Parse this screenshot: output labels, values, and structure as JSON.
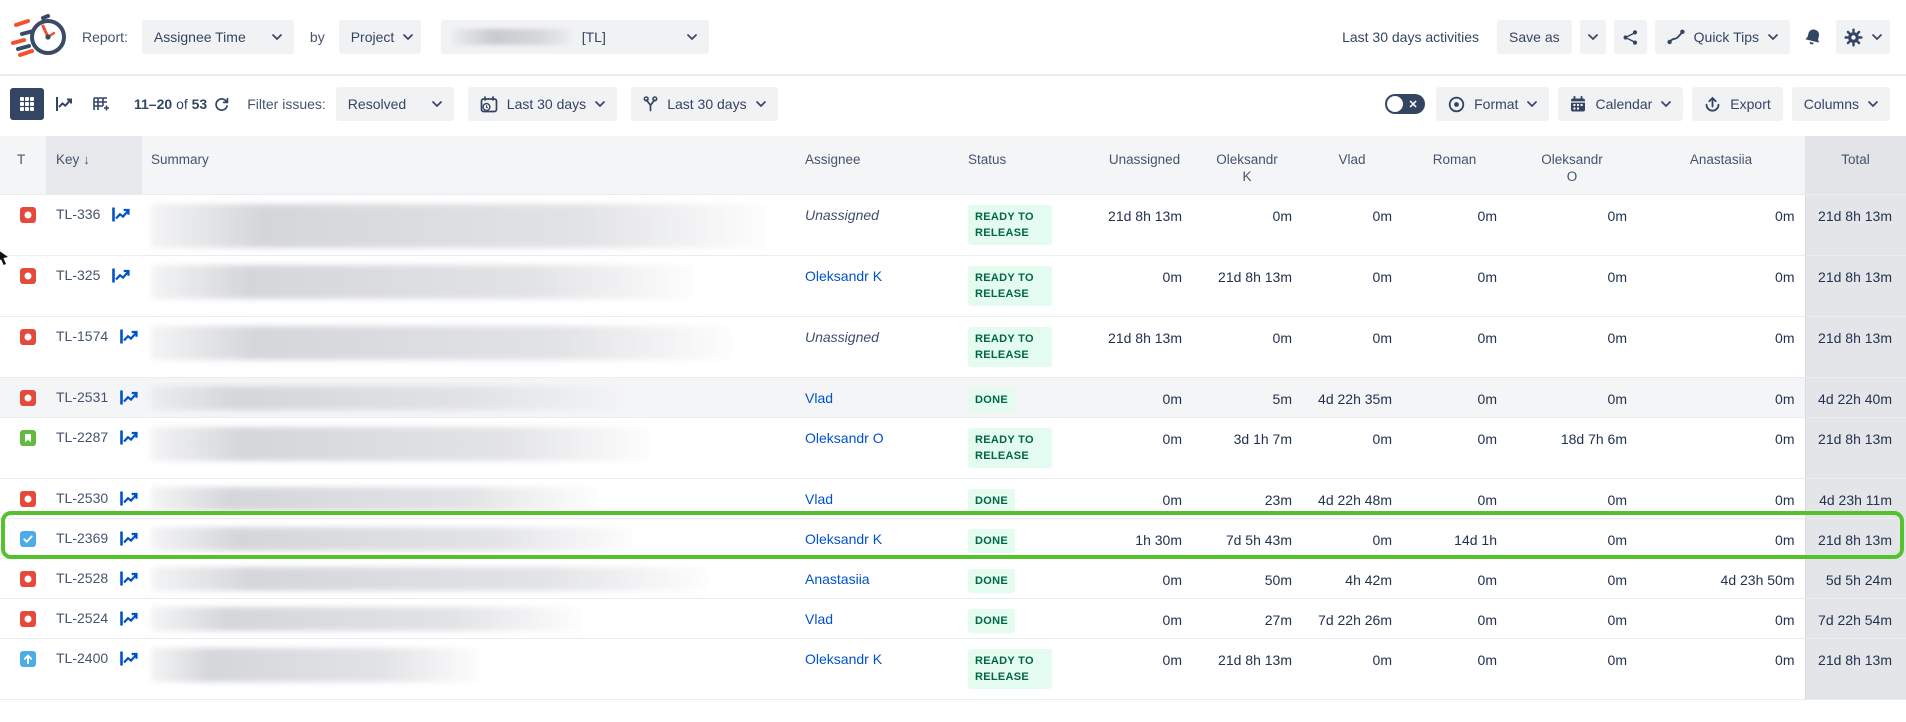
{
  "header": {
    "report_label": "Report:",
    "report_select": "Assignee Time",
    "by_label": "by",
    "group_select": "Project",
    "project_select_suffix": "[TL]",
    "activities_text": "Last 30 days activities",
    "save_as": "Save as",
    "quick_tips": "Quick Tips"
  },
  "toolbar": {
    "pagination_range": "11–20",
    "pagination_of": "of",
    "pagination_total": "53",
    "filter_label": "Filter issues:",
    "status_filter": "Resolved",
    "created_filter": "Last 30 days",
    "updated_filter": "Last 30 days",
    "format_label": "Format",
    "calendar_label": "Calendar",
    "export_label": "Export",
    "columns_label": "Columns"
  },
  "table": {
    "sort_indicator": "↓",
    "columns": [
      {
        "id": "type",
        "label": "T"
      },
      {
        "id": "key",
        "label": "Key",
        "sorted": true
      },
      {
        "id": "summary",
        "label": "Summary"
      },
      {
        "id": "assignee",
        "label": "Assignee"
      },
      {
        "id": "status",
        "label": "Status"
      },
      {
        "id": "user-unassigned",
        "label": "Unassigned",
        "num": true
      },
      {
        "id": "user-oleksandr-k",
        "label": "Oleksandr",
        "line2": "K",
        "num": true
      },
      {
        "id": "user-vlad",
        "label": "Vlad",
        "num": true
      },
      {
        "id": "user-roman",
        "label": "Roman",
        "num": true
      },
      {
        "id": "user-oleksandr-o",
        "label": "Oleksandr",
        "line2": "O",
        "num": true
      },
      {
        "id": "user-anastasiia",
        "label": "Anastasiia",
        "num": true
      },
      {
        "id": "total",
        "label": "Total",
        "num": true,
        "total": true
      }
    ],
    "rows": [
      {
        "type": "bug",
        "key": "TL-336",
        "assignee": "Unassigned",
        "unassigned": true,
        "status": "READY TO RELEASE",
        "hours": [
          "21d 8h 13m",
          "0m",
          "0m",
          "0m",
          "0m",
          "0m"
        ],
        "total": "21d 8h 13m",
        "tall": true,
        "blur_width": 616,
        "blur_height": 44
      },
      {
        "type": "bug",
        "key": "TL-325",
        "assignee": "Oleksandr K",
        "status": "READY TO RELEASE",
        "hours": [
          "0m",
          "21d 8h 13m",
          "0m",
          "0m",
          "0m",
          "0m"
        ],
        "total": "21d 8h 13m",
        "tall": true,
        "blur_width": 543
      },
      {
        "type": "bug",
        "key": "TL-1574",
        "assignee": "Unassigned",
        "unassigned": true,
        "status": "READY TO RELEASE",
        "hours": [
          "21d 8h 13m",
          "0m",
          "0m",
          "0m",
          "0m",
          "0m"
        ],
        "total": "21d 8h 13m",
        "tall": true,
        "blur_width": 580
      },
      {
        "type": "bug",
        "key": "TL-2531",
        "assignee": "Vlad",
        "status": "DONE",
        "hours": [
          "0m",
          "5m",
          "4d 22h 35m",
          "0m",
          "0m",
          "0m"
        ],
        "total": "4d 22h 40m",
        "shaded": true,
        "blur_width": 470
      },
      {
        "type": "story",
        "key": "TL-2287",
        "assignee": "Oleksandr O",
        "status": "READY TO RELEASE",
        "hours": [
          "0m",
          "3d 1h 7m",
          "0m",
          "0m",
          "18d 7h 6m",
          "0m"
        ],
        "total": "21d 8h 13m",
        "tall": true,
        "blur_width": 500
      },
      {
        "type": "bug",
        "key": "TL-2530",
        "assignee": "Vlad",
        "status": "DONE",
        "hours": [
          "0m",
          "23m",
          "4d 22h 48m",
          "0m",
          "0m",
          "0m"
        ],
        "total": "4d 23h 11m",
        "blur_width": 445
      },
      {
        "type": "task",
        "key": "TL-2369",
        "assignee": "Oleksandr K",
        "status": "DONE",
        "hours": [
          "1h 30m",
          "7d 5h 43m",
          "0m",
          "14d 1h",
          "0m",
          "0m"
        ],
        "total": "21d 8h 13m",
        "highlighted": true,
        "blur_width": 483
      },
      {
        "type": "bug",
        "key": "TL-2528",
        "assignee": "Anastasiia",
        "status": "DONE",
        "hours": [
          "0m",
          "50m",
          "4h 42m",
          "0m",
          "0m",
          "4d 23h 50m"
        ],
        "total": "5d 5h 24m",
        "blur_width": 556
      },
      {
        "type": "bug",
        "key": "TL-2524",
        "assignee": "Vlad",
        "status": "DONE",
        "hours": [
          "0m",
          "27m",
          "7d 22h 26m",
          "0m",
          "0m",
          "0m"
        ],
        "total": "7d 22h 54m",
        "blur_width": 430
      },
      {
        "type": "improvement",
        "key": "TL-2400",
        "assignee": "Oleksandr K",
        "status": "READY TO RELEASE",
        "hours": [
          "0m",
          "21d 8h 13m",
          "0m",
          "0m",
          "0m",
          "0m"
        ],
        "total": "21d 8h 13m",
        "tall": true,
        "blur_width": 330
      }
    ]
  },
  "icons": {
    "logo": "stopwatch-speed-logo",
    "type_bug": "red-square-circle",
    "type_story": "green-square-bookmark",
    "type_task": "blue-square-check",
    "type_improvement": "blue-square-arrow-up",
    "row_chart": "blue-trend-line",
    "share": "share-nodes",
    "bell": "notification-bell",
    "gear": "settings-gear",
    "refresh": "refresh-arrows",
    "calendar_clock": "calendar-with-clock",
    "worklog": "branch-y",
    "format": "target-circle",
    "calendar": "calendar-grid",
    "export": "arrow-up-export",
    "views": [
      "grid-view",
      "chart-view",
      "table-add-view"
    ]
  },
  "colors": {
    "accent_blue": "#0052cc",
    "navy": "#344563",
    "status_green_text": "#006644",
    "status_green_bg": "#e3fcef",
    "highlight_green": "#55c22d",
    "bug_red": "#e5493a",
    "story_green": "#63ba3c",
    "task_blue": "#4bade8",
    "header_bg": "#f4f5f7",
    "total_col_bg": "#e4e5e9"
  }
}
